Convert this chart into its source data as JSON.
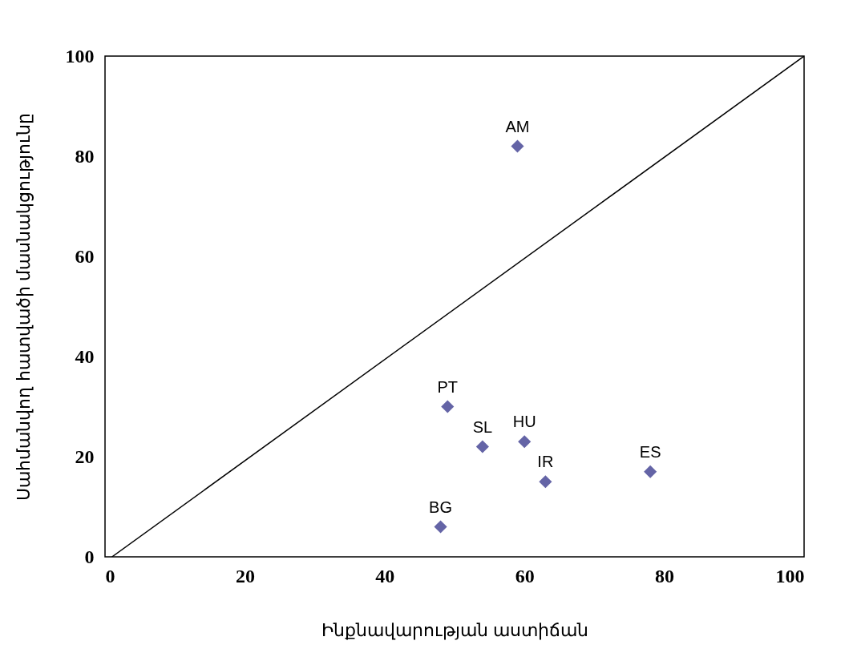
{
  "chart_data": {
    "type": "scatter",
    "xlabel": "Ինքնավարության աստիճան",
    "ylabel": "Սահմանվող հատվածի մասնակցությունը",
    "xlim": [
      0,
      100
    ],
    "ylim": [
      0,
      100
    ],
    "xticks": [
      0,
      20,
      40,
      60,
      80,
      100
    ],
    "yticks": [
      0,
      20,
      40,
      60,
      80,
      100
    ],
    "grid": false,
    "marker": "diamond",
    "series": [
      {
        "type": "line",
        "color": "#000000",
        "marker": "none",
        "x": [
          1,
          100
        ],
        "values": [
          0,
          100
        ]
      },
      {
        "type": "scatter",
        "color": "#6464a6",
        "x": [
          59,
          49,
          54,
          60,
          63,
          78,
          48
        ],
        "values": [
          82,
          30,
          22,
          23,
          15,
          17,
          6
        ]
      }
    ],
    "annotations": [
      {
        "text": "AM",
        "x": 59,
        "y": 82
      },
      {
        "text": "PT",
        "x": 49,
        "y": 30
      },
      {
        "text": "SL",
        "x": 54,
        "y": 22
      },
      {
        "text": "HU",
        "x": 60,
        "y": 23
      },
      {
        "text": "IR",
        "x": 63,
        "y": 15
      },
      {
        "text": "ES",
        "x": 78,
        "y": 17
      },
      {
        "text": "BG",
        "x": 48,
        "y": 6
      }
    ]
  }
}
